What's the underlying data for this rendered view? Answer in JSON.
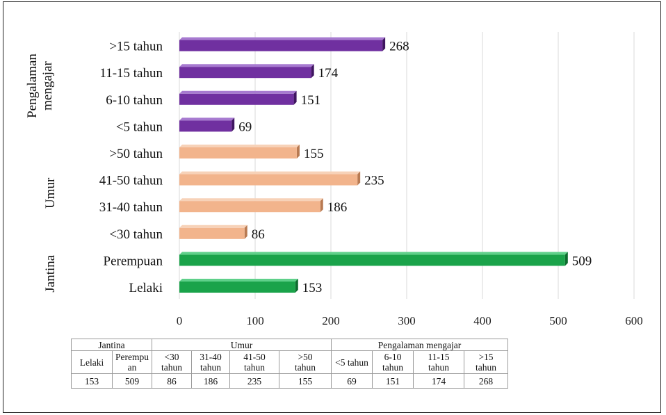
{
  "chart_data": {
    "type": "bar",
    "orientation": "horizontal",
    "x_ticks": [
      "0",
      "100",
      "200",
      "300",
      "400",
      "500",
      "600"
    ],
    "xlim": [
      0,
      600
    ],
    "grid": "vertical",
    "groups": [
      {
        "label": "Jantina",
        "color": "#1aa34a",
        "side": "#0d6b2e",
        "top": "#5fd08a",
        "items": [
          {
            "label": "Lelaki",
            "value": 153
          },
          {
            "label": "Perempuan",
            "value": 509
          }
        ]
      },
      {
        "label": "Umur",
        "color": "#f2b48c",
        "side": "#b87a52",
        "top": "#f7d2b8",
        "items": [
          {
            "label": "<30 tahun",
            "value": 86
          },
          {
            "label": "31-40 tahun",
            "value": 186
          },
          {
            "label": "41-50 tahun",
            "value": 235
          },
          {
            "label": ">50 tahun",
            "value": 155
          }
        ]
      },
      {
        "label": "Pengalaman mengajar",
        "color": "#7030a0",
        "side": "#3f1560",
        "top": "#a77ad0",
        "items": [
          {
            "label": "<5 tahun",
            "value": 69
          },
          {
            "label": "6-10 tahun",
            "value": 151
          },
          {
            "label": "11-15 tahun",
            "value": 174
          },
          {
            "label": ">15 tahun",
            "value": 268
          }
        ]
      }
    ],
    "group_label_lines": {
      "Pengalaman mengajar": [
        "Pengalaman",
        "mengajar"
      ]
    }
  },
  "table": {
    "headers": [
      {
        "label": "Jantina",
        "span": 2
      },
      {
        "label": "Umur",
        "span": 4
      },
      {
        "label": "Pengalaman mengajar",
        "span": 4
      }
    ],
    "subheaders": [
      [
        "Lelaki"
      ],
      [
        "Perempu",
        "an"
      ],
      [
        "<30",
        "tahun"
      ],
      [
        "31-40",
        "tahun"
      ],
      [
        "41-50",
        "tahun"
      ],
      [
        ">50",
        "tahun"
      ],
      [
        "<5 tahun"
      ],
      [
        "6-10",
        "tahun"
      ],
      [
        "11-15",
        "tahun"
      ],
      [
        ">15",
        "tahun"
      ]
    ],
    "values": [
      "153",
      "509",
      "86",
      "186",
      "235",
      "155",
      "69",
      "151",
      "174",
      "268"
    ]
  }
}
